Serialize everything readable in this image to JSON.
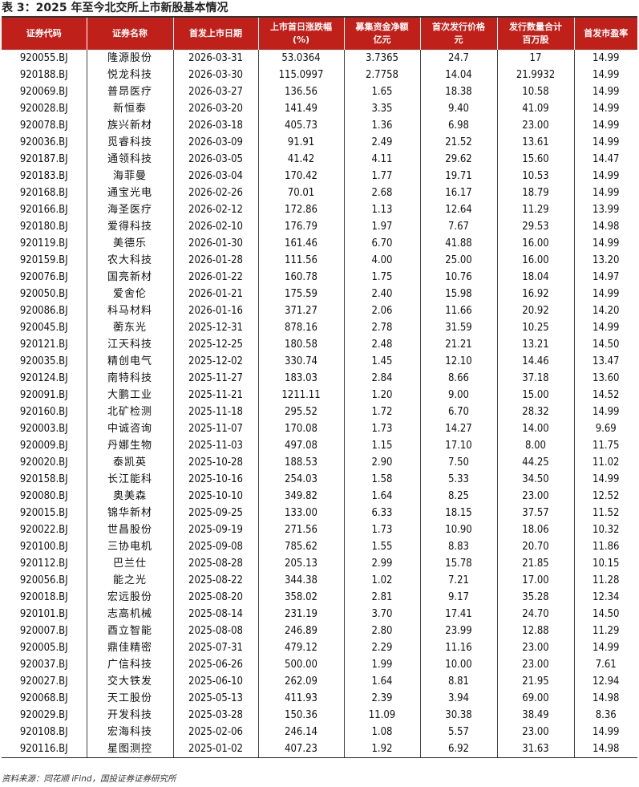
{
  "title": "表 3：2025 年至今北交所上市新股基本情况",
  "columns": [
    "证券代码",
    "证券名称",
    "首发上市日期",
    "上市首日涨跌幅\n(%)",
    "募集资金净额\n亿元",
    "首次发行价格\n元",
    "发行数量合计\n百万股",
    "首发市盈率"
  ],
  "header_color": "#c0201a",
  "rows": [
    [
      "920055.BJ",
      "隆源股份",
      "2026-03-31",
      "53.0364",
      "3.7365",
      "24.7",
      "17",
      "14.99"
    ],
    [
      "920188.BJ",
      "悦龙科技",
      "2026-03-30",
      "115.0997",
      "2.7758",
      "14.04",
      "21.9932",
      "14.99"
    ],
    [
      "920069.BJ",
      "普昂医疗",
      "2026-03-27",
      "136.56",
      "1.65",
      "18.38",
      "10.58",
      "14.99"
    ],
    [
      "920028.BJ",
      "新恒泰",
      "2026-03-20",
      "141.49",
      "3.35",
      "9.40",
      "41.09",
      "14.99"
    ],
    [
      "920078.BJ",
      "族兴新材",
      "2026-03-18",
      "405.73",
      "1.36",
      "6.98",
      "23.00",
      "14.99"
    ],
    [
      "920036.BJ",
      "觅睿科技",
      "2026-03-09",
      "91.91",
      "2.49",
      "21.52",
      "13.61",
      "14.99"
    ],
    [
      "920187.BJ",
      "通领科技",
      "2026-03-05",
      "41.42",
      "4.11",
      "29.62",
      "15.60",
      "14.47"
    ],
    [
      "920183.BJ",
      "海菲曼",
      "2026-03-04",
      "170.42",
      "1.77",
      "19.71",
      "10.53",
      "14.99"
    ],
    [
      "920168.BJ",
      "通宝光电",
      "2026-02-26",
      "70.01",
      "2.68",
      "16.17",
      "18.79",
      "14.99"
    ],
    [
      "920166.BJ",
      "海圣医疗",
      "2026-02-12",
      "172.86",
      "1.13",
      "12.64",
      "11.29",
      "13.99"
    ],
    [
      "920180.BJ",
      "爱得科技",
      "2026-02-10",
      "176.79",
      "1.97",
      "7.67",
      "29.53",
      "14.98"
    ],
    [
      "920119.BJ",
      "美德乐",
      "2026-01-30",
      "161.46",
      "6.70",
      "41.88",
      "16.00",
      "14.99"
    ],
    [
      "920159.BJ",
      "农大科技",
      "2026-01-28",
      "111.56",
      "4.00",
      "25.00",
      "16.00",
      "13.20"
    ],
    [
      "920076.BJ",
      "国亮新材",
      "2026-01-22",
      "160.78",
      "1.75",
      "10.76",
      "18.04",
      "14.97"
    ],
    [
      "920050.BJ",
      "爱舍伦",
      "2026-01-21",
      "175.59",
      "2.40",
      "15.98",
      "16.92",
      "14.99"
    ],
    [
      "920086.BJ",
      "科马材料",
      "2026-01-16",
      "371.27",
      "2.06",
      "11.66",
      "20.92",
      "14.20"
    ],
    [
      "920045.BJ",
      "蘅东光",
      "2025-12-31",
      "878.16",
      "2.78",
      "31.59",
      "10.25",
      "14.99"
    ],
    [
      "920121.BJ",
      "江天科技",
      "2025-12-25",
      "180.58",
      "2.48",
      "21.21",
      "13.21",
      "14.50"
    ],
    [
      "920035.BJ",
      "精创电气",
      "2025-12-02",
      "330.74",
      "1.45",
      "12.10",
      "14.46",
      "13.47"
    ],
    [
      "920124.BJ",
      "南特科技",
      "2025-11-27",
      "183.03",
      "2.84",
      "8.66",
      "37.18",
      "13.60"
    ],
    [
      "920091.BJ",
      "大鹏工业",
      "2025-11-21",
      "1211.11",
      "1.20",
      "9.00",
      "15.00",
      "14.52"
    ],
    [
      "920160.BJ",
      "北矿检测",
      "2025-11-18",
      "295.52",
      "1.72",
      "6.70",
      "28.32",
      "14.99"
    ],
    [
      "920003.BJ",
      "中诚咨询",
      "2025-11-07",
      "170.08",
      "1.73",
      "14.27",
      "14.00",
      "9.69"
    ],
    [
      "920009.BJ",
      "丹娜生物",
      "2025-11-03",
      "497.08",
      "1.15",
      "17.10",
      "8.00",
      "11.75"
    ],
    [
      "920020.BJ",
      "泰凯英",
      "2025-10-28",
      "188.53",
      "2.90",
      "7.50",
      "44.25",
      "11.02"
    ],
    [
      "920158.BJ",
      "长江能科",
      "2025-10-16",
      "254.03",
      "1.58",
      "5.33",
      "34.50",
      "14.99"
    ],
    [
      "920080.BJ",
      "奥美森",
      "2025-10-10",
      "349.82",
      "1.64",
      "8.25",
      "23.00",
      "12.52"
    ],
    [
      "920015.BJ",
      "锦华新材",
      "2025-09-25",
      "133.00",
      "6.33",
      "18.15",
      "37.57",
      "11.52"
    ],
    [
      "920022.BJ",
      "世昌股份",
      "2025-09-19",
      "271.56",
      "1.73",
      "10.90",
      "18.06",
      "10.32"
    ],
    [
      "920100.BJ",
      "三协电机",
      "2025-09-08",
      "785.62",
      "1.55",
      "8.83",
      "20.70",
      "11.86"
    ],
    [
      "920112.BJ",
      "巴兰仕",
      "2025-08-28",
      "205.13",
      "2.99",
      "15.78",
      "21.85",
      "10.15"
    ],
    [
      "920056.BJ",
      "能之光",
      "2025-08-22",
      "344.38",
      "1.02",
      "7.21",
      "17.00",
      "11.28"
    ],
    [
      "920018.BJ",
      "宏远股份",
      "2025-08-20",
      "358.02",
      "2.81",
      "9.17",
      "35.28",
      "12.34"
    ],
    [
      "920101.BJ",
      "志高机械",
      "2025-08-14",
      "231.19",
      "3.70",
      "17.41",
      "24.70",
      "14.50"
    ],
    [
      "920007.BJ",
      "酉立智能",
      "2025-08-08",
      "246.89",
      "2.80",
      "23.99",
      "12.88",
      "11.29"
    ],
    [
      "920005.BJ",
      "鼎佳精密",
      "2025-07-31",
      "479.12",
      "2.29",
      "11.16",
      "23.00",
      "14.99"
    ],
    [
      "920037.BJ",
      "广信科技",
      "2025-06-26",
      "500.00",
      "1.99",
      "10.00",
      "23.00",
      "7.61"
    ],
    [
      "920027.BJ",
      "交大铁发",
      "2025-06-10",
      "262.09",
      "1.64",
      "8.81",
      "21.95",
      "12.94"
    ],
    [
      "920068.BJ",
      "天工股份",
      "2025-05-13",
      "411.93",
      "2.39",
      "3.94",
      "69.00",
      "14.98"
    ],
    [
      "920029.BJ",
      "开发科技",
      "2025-03-28",
      "150.36",
      "11.09",
      "30.38",
      "38.49",
      "8.36"
    ],
    [
      "920108.BJ",
      "宏海科技",
      "2025-02-06",
      "246.14",
      "1.08",
      "5.57",
      "23.00",
      "14.99"
    ],
    [
      "920116.BJ",
      "星图测控",
      "2025-01-02",
      "407.23",
      "1.92",
      "6.92",
      "31.63",
      "14.98"
    ]
  ],
  "source": "资料来源：同花顺 iFind，国投证券证券研究所"
}
